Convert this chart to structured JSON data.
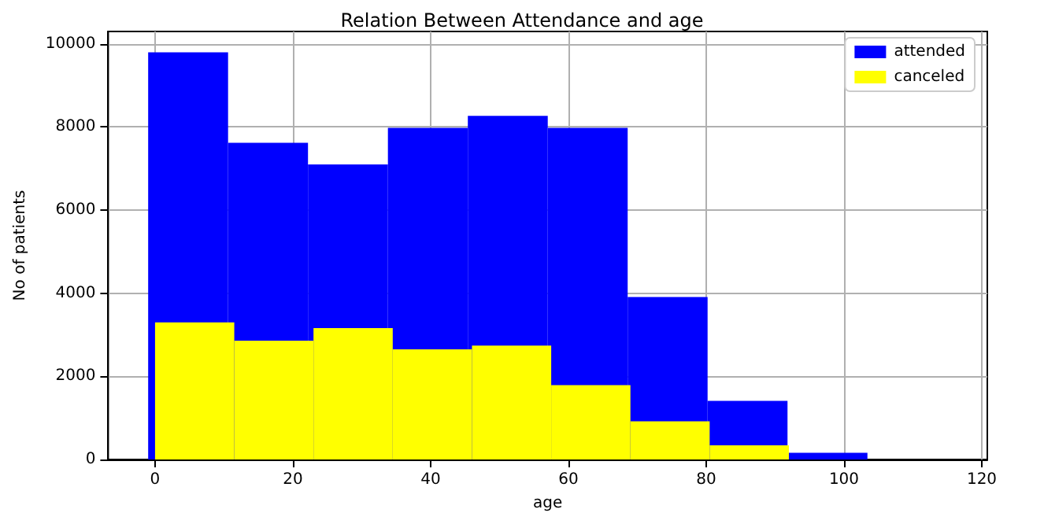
{
  "chart_data": {
    "type": "histogram",
    "title": "Relation Between Attendance and age",
    "xlabel": "age",
    "ylabel": "No of patients",
    "bins": [
      -1,
      10.6,
      22.2,
      33.8,
      45.4,
      57,
      68.6,
      80.2,
      91.8,
      103.4,
      115
    ],
    "series": [
      {
        "name": "attended",
        "color": "#0000ff",
        "values": [
          9800,
          7620,
          7100,
          7980,
          8270,
          7980,
          3910,
          1410,
          160,
          0
        ]
      },
      {
        "name": "canceled",
        "color": "#ffff00",
        "bins": [
          0,
          11.5,
          23,
          34.5,
          46,
          57.5,
          69,
          80.5,
          92,
          103.5,
          115
        ],
        "values": [
          3300,
          2860,
          3160,
          2650,
          2740,
          1790,
          920,
          340,
          0,
          0
        ]
      }
    ],
    "xlim": [
      -6.8,
      120.8
    ],
    "xticks": [
      0,
      20,
      40,
      60,
      80,
      100,
      120
    ],
    "ylim": [
      0,
      10300
    ],
    "yticks": [
      0,
      2000,
      4000,
      6000,
      8000,
      10000
    ],
    "grid": true,
    "legend": "top right"
  }
}
